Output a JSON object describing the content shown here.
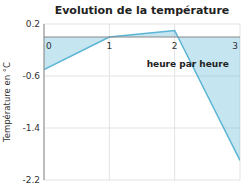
{
  "chart_data": {
    "type": "area",
    "title": "Evolution de la température",
    "ylabel": "Température en °C",
    "x": [
      0,
      1,
      2,
      3
    ],
    "values": [
      -0.5,
      0.0,
      0.1,
      -1.9
    ],
    "color": "#5ab4d4",
    "xlim": [
      0,
      3
    ],
    "ylim": [
      -2.2,
      0.2
    ],
    "xticks": [
      0,
      1,
      2,
      3
    ],
    "yticks": [
      0.2,
      -0.6,
      -1.4,
      -2.2
    ],
    "grid": true,
    "annotations": [
      {
        "text": "heure par heure",
        "x": 2.2,
        "y": -0.42
      }
    ]
  }
}
